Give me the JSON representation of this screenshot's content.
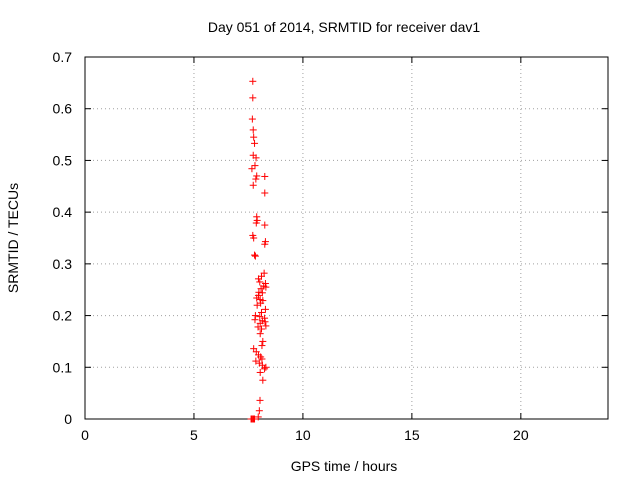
{
  "chart_data": {
    "type": "scatter",
    "title": "Day 051 of 2014, SRMTID for receiver dav1",
    "xlabel": "GPS time / hours",
    "ylabel": "SRMTID / TECUs",
    "xlim": [
      0,
      24
    ],
    "ylim": [
      0,
      0.7
    ],
    "xticks": [
      0,
      5,
      10,
      15,
      20
    ],
    "yticks": [
      0,
      0.1,
      0.2,
      0.3,
      0.4,
      0.5,
      0.6,
      0.7
    ],
    "xtick_labels": [
      "0",
      "5",
      "10",
      "15",
      "20"
    ],
    "ytick_labels": [
      "0",
      "0.1",
      "0.2",
      "0.3",
      "0.4",
      "0.5",
      "0.6",
      "0.7"
    ],
    "grid": true,
    "marker": "+",
    "series": [
      {
        "color": "#ff0000",
        "points": [
          [
            7.62,
            0.0
          ],
          [
            7.65,
            0.0
          ],
          [
            7.68,
            0.0
          ],
          [
            7.72,
            0.0
          ],
          [
            7.75,
            0.0
          ],
          [
            7.78,
            0.0
          ],
          [
            7.95,
            0.004
          ],
          [
            8.0,
            0.016
          ],
          [
            8.03,
            0.036
          ],
          [
            7.7,
            0.653
          ],
          [
            7.7,
            0.621
          ],
          [
            7.68,
            0.58
          ],
          [
            7.72,
            0.559
          ],
          [
            7.74,
            0.545
          ],
          [
            7.78,
            0.533
          ],
          [
            7.72,
            0.51
          ],
          [
            7.85,
            0.505
          ],
          [
            7.8,
            0.49
          ],
          [
            7.66,
            0.484
          ],
          [
            7.88,
            0.47
          ],
          [
            7.84,
            0.464
          ],
          [
            7.72,
            0.452
          ],
          [
            8.25,
            0.469
          ],
          [
            8.25,
            0.437
          ],
          [
            7.88,
            0.391
          ],
          [
            7.9,
            0.384
          ],
          [
            7.86,
            0.379
          ],
          [
            8.25,
            0.375
          ],
          [
            7.7,
            0.355
          ],
          [
            7.74,
            0.35
          ],
          [
            8.28,
            0.343
          ],
          [
            8.25,
            0.338
          ],
          [
            7.78,
            0.317
          ],
          [
            7.82,
            0.315
          ],
          [
            8.22,
            0.282
          ],
          [
            8.1,
            0.276
          ],
          [
            7.96,
            0.271
          ],
          [
            8.02,
            0.265
          ],
          [
            8.28,
            0.262
          ],
          [
            8.2,
            0.257
          ],
          [
            8.08,
            0.252
          ],
          [
            8.3,
            0.255
          ],
          [
            7.98,
            0.245
          ],
          [
            8.14,
            0.244
          ],
          [
            7.96,
            0.239
          ],
          [
            7.88,
            0.234
          ],
          [
            8.04,
            0.231
          ],
          [
            8.16,
            0.229
          ],
          [
            8.06,
            0.224
          ],
          [
            7.9,
            0.22
          ],
          [
            8.28,
            0.212
          ],
          [
            8.1,
            0.206
          ],
          [
            7.82,
            0.2
          ],
          [
            8.02,
            0.198
          ],
          [
            8.24,
            0.195
          ],
          [
            7.8,
            0.192
          ],
          [
            8.14,
            0.19
          ],
          [
            8.26,
            0.188
          ],
          [
            8.04,
            0.185
          ],
          [
            8.3,
            0.18
          ],
          [
            7.94,
            0.178
          ],
          [
            8.1,
            0.174
          ],
          [
            8.04,
            0.165
          ],
          [
            8.16,
            0.15
          ],
          [
            8.12,
            0.142
          ],
          [
            7.74,
            0.136
          ],
          [
            7.86,
            0.13
          ],
          [
            7.96,
            0.124
          ],
          [
            8.06,
            0.12
          ],
          [
            8.12,
            0.116
          ],
          [
            7.84,
            0.112
          ],
          [
            8.0,
            0.108
          ],
          [
            8.14,
            0.104
          ],
          [
            8.3,
            0.1
          ],
          [
            8.24,
            0.097
          ],
          [
            8.04,
            0.09
          ],
          [
            8.16,
            0.075
          ]
        ]
      }
    ]
  }
}
